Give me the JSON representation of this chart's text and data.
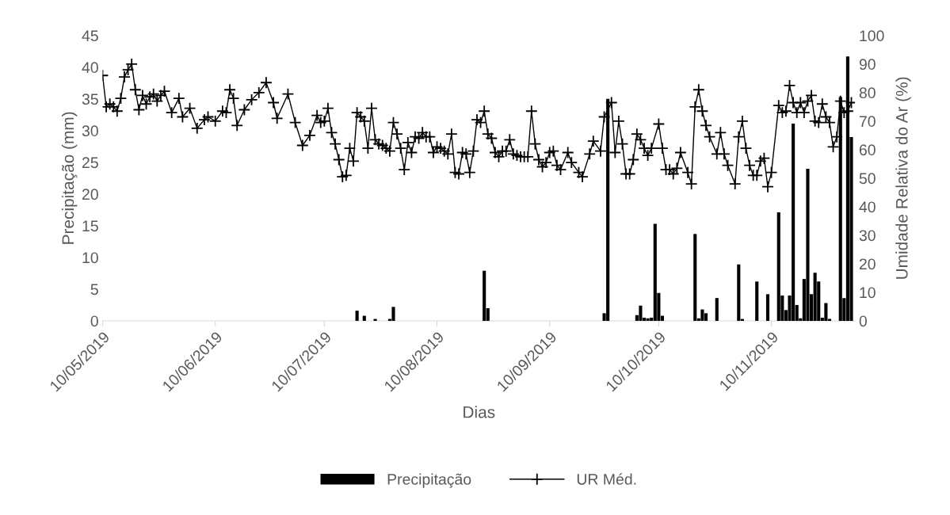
{
  "chart_data": {
    "type": "bar",
    "xlabel": "Dias",
    "ylabel": "Precipitação (mm)",
    "y2label": "Umidade Relativa do Ar (%)",
    "xlim": [
      "2019-05-10",
      "2019-12-03"
    ],
    "xticks": [
      {
        "value": "2019-05-10",
        "label": "10/05/2019"
      },
      {
        "value": "2019-06-10",
        "label": "10/06/2019"
      },
      {
        "value": "2019-07-10",
        "label": "10/07/2019"
      },
      {
        "value": "2019-08-10",
        "label": "10/08/2019"
      },
      {
        "value": "2019-09-10",
        "label": "10/09/2019"
      },
      {
        "value": "2019-10-10",
        "label": "10/10/2019"
      },
      {
        "value": "2019-11-10",
        "label": "10/11/2019"
      }
    ],
    "ylim": [
      0,
      45
    ],
    "yticks": [
      0,
      5,
      10,
      15,
      20,
      25,
      30,
      35,
      40,
      45
    ],
    "y2lim": [
      0,
      100
    ],
    "y2ticks": [
      0,
      10,
      20,
      30,
      40,
      50,
      60,
      70,
      80,
      90,
      100
    ],
    "legend": "bottom",
    "marker": "cross",
    "grid": false,
    "series": [
      {
        "name": "Precipitação",
        "color": "#000000",
        "x": [
          "2019-07-19",
          "2019-07-21",
          "2019-07-24",
          "2019-07-28",
          "2019-07-29",
          "2019-08-23",
          "2019-08-24",
          "2019-09-25",
          "2019-09-26",
          "2019-10-04",
          "2019-10-05",
          "2019-10-06",
          "2019-10-07",
          "2019-10-08",
          "2019-10-09",
          "2019-10-10",
          "2019-10-11",
          "2019-10-20",
          "2019-10-21",
          "2019-10-22",
          "2019-10-23",
          "2019-10-26",
          "2019-11-01",
          "2019-11-02",
          "2019-11-06",
          "2019-11-09",
          "2019-11-12",
          "2019-11-13",
          "2019-11-14",
          "2019-11-15",
          "2019-11-16",
          "2019-11-17",
          "2019-11-18",
          "2019-11-19",
          "2019-11-20",
          "2019-11-21",
          "2019-11-22",
          "2019-11-23",
          "2019-11-24",
          "2019-11-25",
          "2019-11-26",
          "2019-11-29",
          "2019-11-30",
          "2019-12-01",
          "2019-12-02"
        ],
        "values": [
          1.6,
          0.8,
          0.3,
          0.3,
          2.2,
          7.9,
          2.0,
          1.2,
          35,
          0.9,
          2.4,
          0.5,
          0.4,
          0.5,
          15.3,
          4.4,
          0.8,
          13.7,
          0.4,
          1.8,
          1.2,
          3.6,
          8.9,
          0.3,
          6.2,
          4.2,
          17.1,
          4.0,
          1.7,
          4.0,
          31.1,
          2.5,
          0.4,
          6.6,
          24,
          4.2,
          7.6,
          6.2,
          0.5,
          2.8,
          0.3,
          35.3,
          3.6,
          41.7,
          29
        ]
      },
      {
        "name": "UR Méd.",
        "type": "line",
        "axis": "y2",
        "color": "#000000",
        "x": [
          "2019-05-10",
          "2019-05-11",
          "2019-05-12",
          "2019-05-13",
          "2019-05-14",
          "2019-05-15",
          "2019-05-16",
          "2019-05-17",
          "2019-05-18",
          "2019-05-19",
          "2019-05-20",
          "2019-05-21",
          "2019-05-22",
          "2019-05-23",
          "2019-05-24",
          "2019-05-25",
          "2019-05-26",
          "2019-05-27",
          "2019-05-29",
          "2019-05-31",
          "2019-06-01",
          "2019-06-03",
          "2019-06-05",
          "2019-06-07",
          "2019-06-08",
          "2019-06-10",
          "2019-06-12",
          "2019-06-13",
          "2019-06-14",
          "2019-06-15",
          "2019-06-16",
          "2019-06-18",
          "2019-06-20",
          "2019-06-22",
          "2019-06-24",
          "2019-06-26",
          "2019-06-27",
          "2019-06-30",
          "2019-07-02",
          "2019-07-04",
          "2019-07-06",
          "2019-07-08",
          "2019-07-09",
          "2019-07-10",
          "2019-07-11",
          "2019-07-12",
          "2019-07-13",
          "2019-07-14",
          "2019-07-15",
          "2019-07-16",
          "2019-07-17",
          "2019-07-18",
          "2019-07-19",
          "2019-07-20",
          "2019-07-21",
          "2019-07-22",
          "2019-07-23",
          "2019-07-24",
          "2019-07-25",
          "2019-07-26",
          "2019-07-27",
          "2019-07-28",
          "2019-07-29",
          "2019-07-30",
          "2019-07-31",
          "2019-08-01",
          "2019-08-02",
          "2019-08-03",
          "2019-08-04",
          "2019-08-05",
          "2019-08-06",
          "2019-08-07",
          "2019-08-08",
          "2019-08-09",
          "2019-08-10",
          "2019-08-11",
          "2019-08-12",
          "2019-08-13",
          "2019-08-14",
          "2019-08-15",
          "2019-08-16",
          "2019-08-17",
          "2019-08-18",
          "2019-08-19",
          "2019-08-20",
          "2019-08-21",
          "2019-08-22",
          "2019-08-23",
          "2019-08-24",
          "2019-08-25",
          "2019-08-26",
          "2019-08-27",
          "2019-08-28",
          "2019-08-29",
          "2019-08-30",
          "2019-08-31",
          "2019-09-01",
          "2019-09-02",
          "2019-09-03",
          "2019-09-04",
          "2019-09-05",
          "2019-09-06",
          "2019-09-07",
          "2019-09-08",
          "2019-09-09",
          "2019-09-10",
          "2019-09-11",
          "2019-09-12",
          "2019-09-13",
          "2019-09-15",
          "2019-09-16",
          "2019-09-18",
          "2019-09-19",
          "2019-09-21",
          "2019-09-22",
          "2019-09-24",
          "2019-09-25",
          "2019-09-27",
          "2019-09-28",
          "2019-09-29",
          "2019-09-30",
          "2019-10-01",
          "2019-10-02",
          "2019-10-03",
          "2019-10-04",
          "2019-10-05",
          "2019-10-06",
          "2019-10-07",
          "2019-10-08",
          "2019-10-10",
          "2019-10-11",
          "2019-10-12",
          "2019-10-13",
          "2019-10-14",
          "2019-10-15",
          "2019-10-16",
          "2019-10-18",
          "2019-10-19",
          "2019-10-20",
          "2019-10-21",
          "2019-10-22",
          "2019-10-23",
          "2019-10-24",
          "2019-10-26",
          "2019-10-27",
          "2019-10-28",
          "2019-10-29",
          "2019-10-31",
          "2019-11-01",
          "2019-11-02",
          "2019-11-03",
          "2019-11-04",
          "2019-11-05",
          "2019-11-06",
          "2019-11-07",
          "2019-11-08",
          "2019-11-09",
          "2019-11-10",
          "2019-11-12",
          "2019-11-13",
          "2019-11-14",
          "2019-11-15",
          "2019-11-16",
          "2019-11-17",
          "2019-11-18",
          "2019-11-19",
          "2019-11-20",
          "2019-11-21",
          "2019-11-22",
          "2019-11-23",
          "2019-11-24",
          "2019-11-25",
          "2019-11-26",
          "2019-11-27",
          "2019-11-28",
          "2019-11-29",
          "2019-11-30",
          "2019-12-01",
          "2019-12-02"
        ],
        "values": [
          86,
          75,
          76,
          75,
          73.5,
          78,
          85.5,
          88,
          90,
          81,
          74,
          79,
          76,
          78.5,
          79.5,
          77,
          79,
          80.5,
          73,
          78,
          71.5,
          74.5,
          67.5,
          70.5,
          71.5,
          70,
          73.5,
          73,
          81,
          78,
          68.5,
          74,
          77.5,
          80,
          83.5,
          76.5,
          71,
          79.5,
          69.5,
          61.5,
          65,
          72,
          69.5,
          70,
          74.5,
          66,
          62,
          56.5,
          50.5,
          51,
          60.5,
          56,
          73,
          71.5,
          70,
          60.5,
          74.5,
          63.5,
          62,
          61.5,
          60.5,
          59.5,
          69.5,
          65.5,
          60.5,
          53,
          62.5,
          59,
          64.5,
          64,
          66,
          64.5,
          64.5,
          59,
          61,
          60.5,
          59.5,
          58.5,
          65.5,
          52,
          51.5,
          59,
          58.5,
          52,
          59.5,
          70.5,
          69.5,
          73.5,
          65.5,
          64,
          59,
          57.5,
          59.5,
          59.5,
          63.5,
          58.5,
          58,
          57.5,
          57.5,
          57.5,
          73.5,
          62,
          56.5,
          54,
          55.5,
          59,
          59.5,
          54.5,
          53,
          59,
          55.5,
          52,
          50.5,
          58.5,
          63,
          59.5,
          71.5,
          76.5,
          59,
          70,
          62,
          51.5,
          51.5,
          56.5,
          65.5,
          63.5,
          60.5,
          58,
          60.5,
          69,
          60.5,
          53,
          53,
          51.5,
          53.5,
          59,
          52,
          48,
          75,
          81,
          73.5,
          68.5,
          64.5,
          58.5,
          66,
          58.5,
          54.5,
          48,
          64.5,
          70,
          60.5,
          54.5,
          51,
          51,
          56,
          57,
          47,
          52,
          75.5,
          73,
          73.5,
          82.5,
          76.5,
          73,
          76.5,
          73,
          77,
          79,
          70,
          69.5,
          76,
          71.5,
          69.5,
          61,
          64.5,
          77,
          73,
          73.5,
          76.5
        ]
      }
    ]
  }
}
